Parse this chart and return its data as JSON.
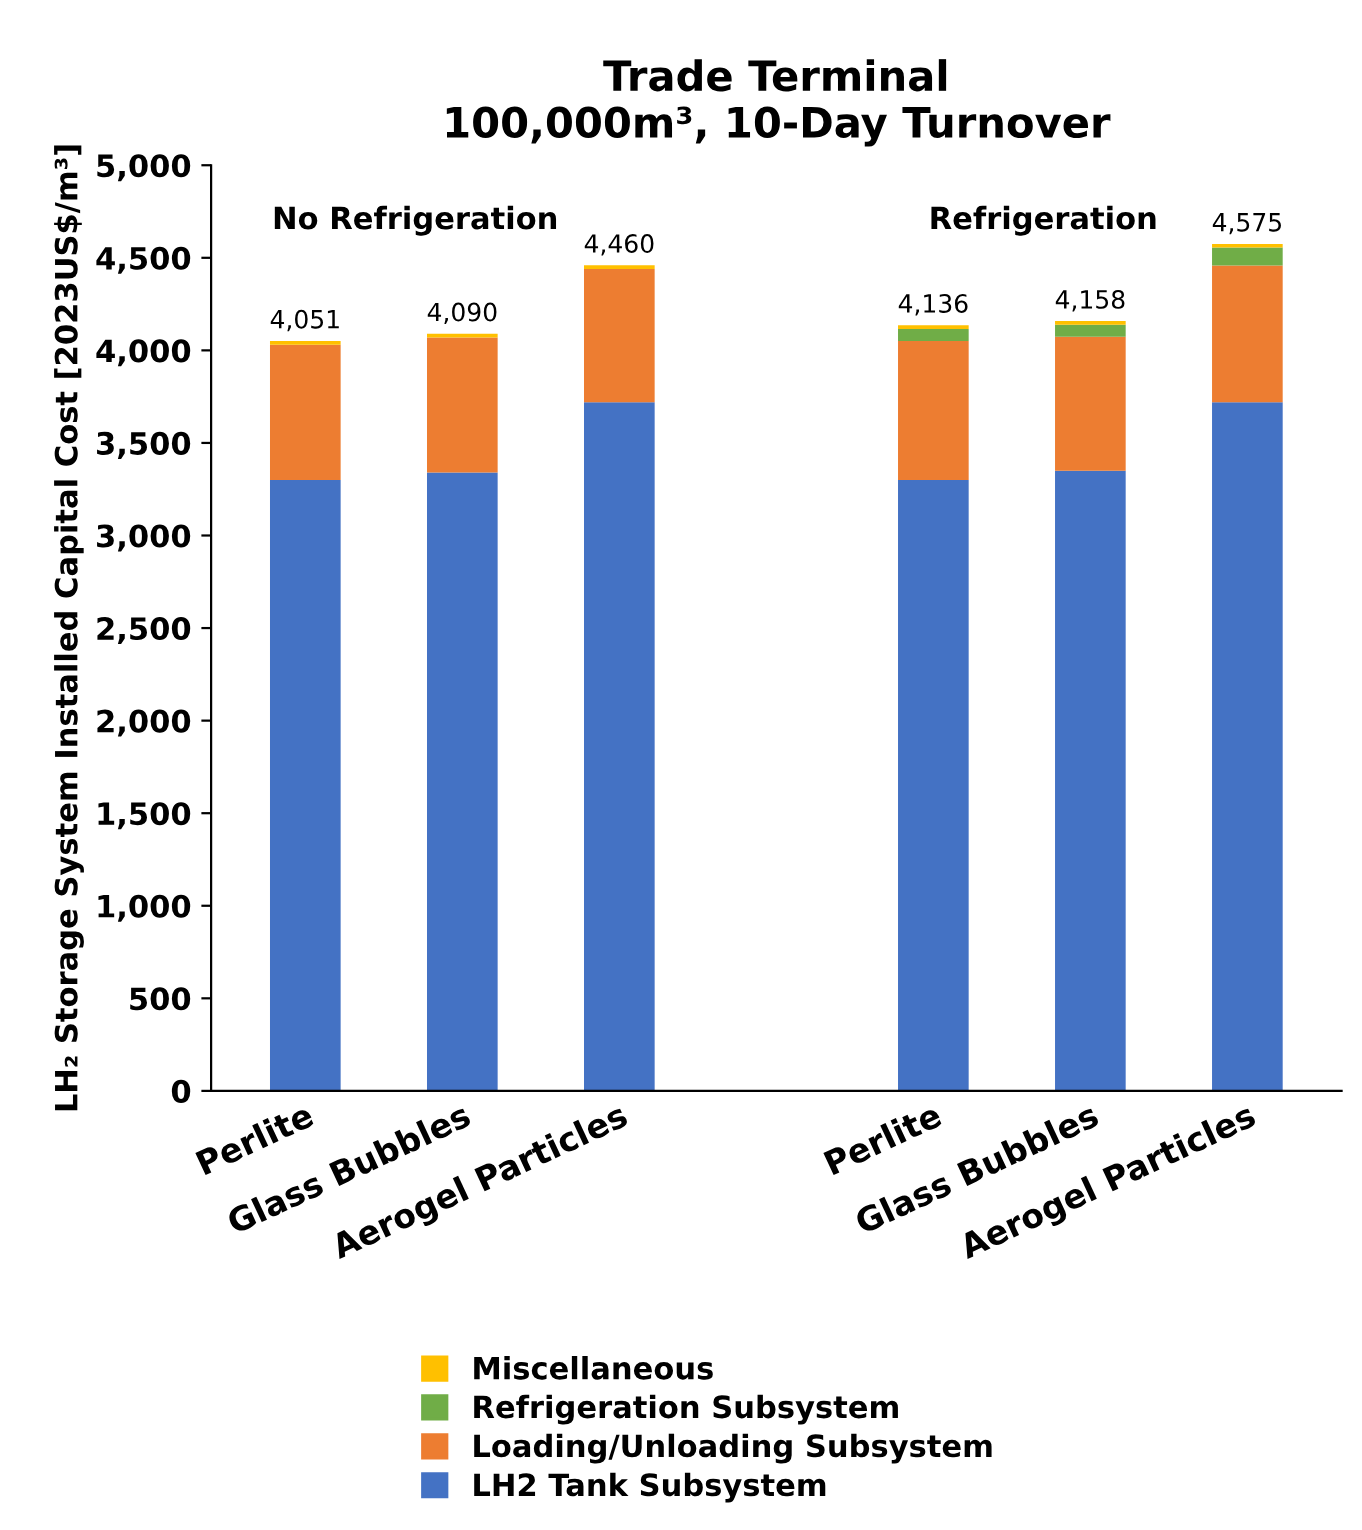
{
  "chart_data": {
    "type": "bar",
    "stacked": true,
    "title": "Trade Terminal\n100,000m³, 10-Day Turnover",
    "ylabel": "LH₂ Storage System Installed Capital Cost [2023US$/m³]",
    "categories": [
      "Perlite",
      "Glass Bubbles",
      "Aerogel Particles",
      null,
      "Perlite",
      "Glass Bubbles",
      "Aerogel Particles"
    ],
    "series": [
      {
        "name": "LH2 Tank Subsystem",
        "color": "#4472c4",
        "values": [
          3300,
          3340,
          3720,
          null,
          3300,
          3350,
          3720
        ]
      },
      {
        "name": "Loading/Unloading Subsystem",
        "color": "#ed7d31",
        "values": [
          731,
          730,
          720,
          null,
          750,
          723,
          738
        ]
      },
      {
        "name": "Refrigeration Subsystem",
        "color": "#70ad47",
        "values": [
          0,
          0,
          0,
          null,
          66,
          65,
          97
        ]
      },
      {
        "name": "Miscellaneous",
        "color": "#ffc000",
        "values": [
          20,
          20,
          20,
          null,
          20,
          20,
          20
        ]
      }
    ],
    "totals": [
      "4,051",
      "4,090",
      "4,460",
      null,
      "4,136",
      "4,158",
      "4,575"
    ],
    "annotations": [
      "No Refrigeration",
      "Refrigeration"
    ],
    "ylim": [
      0,
      5000
    ],
    "yticks": [
      0,
      500,
      {
        "value": 1000,
        "label": "1,000"
      },
      {
        "value": 1500,
        "label": "1,500"
      },
      {
        "value": 2000,
        "label": "2,000"
      },
      {
        "value": 2500,
        "label": "2,500"
      },
      {
        "value": 3000,
        "label": "3,000"
      },
      {
        "value": 3500,
        "label": "3,500"
      },
      {
        "value": 4000,
        "label": "4,000"
      },
      {
        "value": 4500,
        "label": "4,500"
      },
      {
        "value": 5000,
        "label": "5,000"
      }
    ],
    "grid": false,
    "legend": "bottom"
  }
}
